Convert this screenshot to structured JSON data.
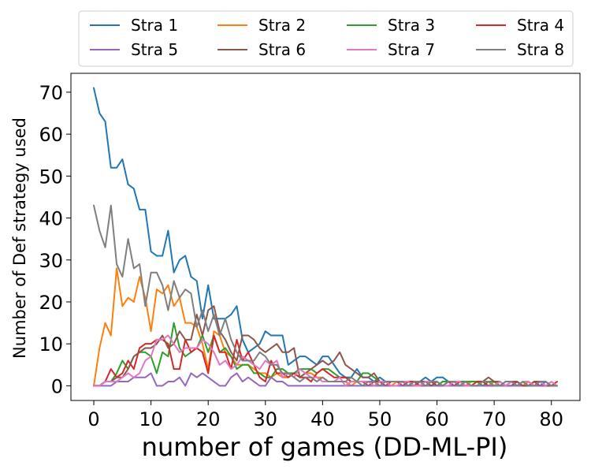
{
  "chart_data": {
    "type": "line",
    "xlabel": "number of games (DD-ML-PI)",
    "ylabel": "Number of Def strategy used",
    "xlim": [
      -4,
      85
    ],
    "ylim": [
      -3.5,
      74.5
    ],
    "xticks": [
      0,
      10,
      20,
      30,
      40,
      50,
      60,
      70,
      80
    ],
    "yticks": [
      0,
      10,
      20,
      30,
      40,
      50,
      60,
      70
    ],
    "legend": {
      "placement": "top-outside",
      "columns": 4
    },
    "grid": false,
    "series": [
      {
        "name": "Stra 1",
        "color": "#1f77b4",
        "values": [
          71,
          65,
          63,
          52,
          52,
          54,
          48,
          47,
          42,
          42,
          32,
          31,
          31,
          37,
          27,
          30,
          31,
          26,
          25,
          16,
          24,
          16,
          16,
          16,
          17,
          19,
          11,
          8,
          9,
          10,
          13,
          12,
          12,
          12,
          5,
          6,
          7,
          7,
          6,
          5,
          7,
          7,
          5,
          3,
          2,
          2,
          4,
          2,
          2,
          1,
          2,
          1,
          1,
          1,
          1,
          0,
          1,
          1,
          2,
          1,
          2,
          2,
          1,
          1,
          0,
          1,
          1,
          1,
          0,
          0,
          1,
          1,
          0,
          0,
          1,
          0,
          1,
          0,
          0,
          1,
          0,
          0
        ]
      },
      {
        "name": "Stra 2",
        "color": "#ff7f0e",
        "values": [
          0,
          9,
          15,
          12,
          28,
          19,
          21,
          20,
          26,
          21,
          13,
          23,
          22,
          24,
          19,
          21,
          15,
          15,
          14,
          10,
          4,
          13,
          12,
          8,
          7,
          5,
          5,
          5,
          4,
          3,
          3,
          2,
          3,
          2,
          2,
          3,
          4,
          3,
          3,
          2,
          2,
          1,
          1,
          1,
          1,
          0,
          1,
          1,
          1,
          1,
          1,
          0,
          0,
          1,
          1,
          1,
          0,
          0,
          1,
          1,
          0,
          1,
          1,
          0,
          1,
          0,
          1,
          1,
          0,
          0,
          1,
          0,
          0,
          1,
          0,
          0,
          1,
          0,
          0,
          0,
          0,
          0
        ]
      },
      {
        "name": "Stra 3",
        "color": "#2ca02c",
        "values": [
          0,
          0,
          1,
          1,
          3,
          6,
          4,
          7,
          8,
          8,
          7,
          3,
          8,
          7,
          15,
          9,
          7,
          8,
          9,
          12,
          8,
          12,
          8,
          9,
          7,
          4,
          5,
          5,
          3,
          3,
          2,
          2,
          4,
          4,
          3,
          3,
          4,
          4,
          4,
          3,
          4,
          4,
          3,
          2,
          2,
          1,
          1,
          3,
          3,
          2,
          1,
          1,
          1,
          1,
          1,
          1,
          0,
          1,
          1,
          1,
          0,
          1,
          1,
          1,
          1,
          1,
          1,
          1,
          0,
          1,
          1,
          0,
          1,
          1,
          0,
          1,
          0,
          0,
          1,
          0,
          0,
          0
        ]
      },
      {
        "name": "Stra 4",
        "color": "#d62728",
        "values": [
          0,
          0,
          1,
          4,
          2,
          3,
          6,
          4,
          9,
          10,
          10,
          11,
          11,
          10,
          4,
          4,
          11,
          8,
          9,
          8,
          3,
          12,
          8,
          8,
          4,
          11,
          6,
          8,
          5,
          2,
          1,
          6,
          3,
          3,
          2,
          3,
          2,
          2,
          1,
          3,
          4,
          3,
          2,
          2,
          2,
          1,
          1,
          1,
          0,
          1,
          1,
          0,
          1,
          1,
          0,
          1,
          1,
          0,
          0,
          1,
          0,
          0,
          1,
          0,
          1,
          0,
          0,
          1,
          1,
          0,
          0,
          1,
          0,
          0,
          1,
          0,
          0,
          1,
          0,
          0,
          0,
          1
        ]
      },
      {
        "name": "Stra 5",
        "color": "#9467bd",
        "values": [
          0,
          0,
          0,
          0,
          1,
          1,
          1,
          2,
          2,
          2,
          3,
          0,
          0,
          1,
          1,
          2,
          0,
          3,
          2,
          3,
          2,
          1,
          0,
          0,
          2,
          3,
          1,
          2,
          1,
          0,
          0,
          2,
          1,
          1,
          0,
          0,
          0,
          0,
          0,
          0,
          0,
          0,
          0,
          0,
          0,
          0,
          0,
          0,
          0,
          0,
          0,
          0,
          0,
          0,
          0,
          0,
          0,
          0,
          0,
          0,
          0,
          0,
          0,
          0,
          0,
          0,
          0,
          0,
          0,
          0,
          0,
          0,
          0,
          0,
          0,
          0,
          0,
          0,
          0,
          0,
          0,
          0
        ]
      },
      {
        "name": "Stra 6",
        "color": "#8c564b",
        "values": [
          0,
          0,
          1,
          1,
          2,
          2,
          4,
          7,
          8,
          9,
          9,
          10,
          12,
          9,
          10,
          13,
          11,
          11,
          17,
          12,
          18,
          19,
          13,
          11,
          8,
          6,
          12,
          12,
          11,
          9,
          8,
          9,
          10,
          8,
          8,
          9,
          2,
          3,
          4,
          5,
          6,
          5,
          6,
          8,
          5,
          4,
          3,
          2,
          2,
          3,
          1,
          1,
          1,
          1,
          1,
          1,
          0,
          1,
          1,
          0,
          1,
          0,
          1,
          1,
          0,
          1,
          0,
          0,
          1,
          2,
          1,
          1,
          0,
          1,
          1,
          0,
          0,
          1,
          1,
          0,
          0,
          0
        ]
      },
      {
        "name": "Stra 7",
        "color": "#e377c2",
        "values": [
          0,
          0,
          1,
          1,
          1,
          2,
          3,
          2,
          3,
          6,
          7,
          11,
          11,
          12,
          10,
          8,
          9,
          9,
          9,
          11,
          10,
          8,
          5,
          6,
          4,
          5,
          7,
          6,
          5,
          4,
          6,
          5,
          6,
          2,
          3,
          2,
          4,
          3,
          2,
          2,
          1,
          1,
          1,
          2,
          0,
          1,
          1,
          1,
          1,
          0,
          1,
          1,
          0,
          0,
          1,
          1,
          0,
          0,
          1,
          1,
          1,
          0,
          0,
          1,
          1,
          0,
          0,
          0,
          1,
          1,
          0,
          1,
          0,
          1,
          0,
          1,
          1,
          0,
          1,
          0,
          1,
          0
        ]
      },
      {
        "name": "Stra 8",
        "color": "#7f7f7f",
        "values": [
          43,
          37,
          33,
          43,
          29,
          26,
          35,
          28,
          29,
          19,
          27,
          27,
          24,
          18,
          25,
          21,
          23,
          22,
          14,
          18,
          13,
          17,
          12,
          16,
          11,
          8,
          6,
          6,
          6,
          8,
          7,
          5,
          5,
          3,
          3,
          2,
          1,
          2,
          2,
          1,
          2,
          1,
          1,
          1,
          1,
          2,
          1,
          0,
          1,
          1,
          0,
          1,
          1,
          1,
          1,
          0,
          1,
          1,
          0,
          1,
          1,
          0,
          1,
          1,
          0,
          1,
          0,
          0,
          1,
          1,
          0,
          0,
          1,
          1,
          0,
          1,
          0,
          0,
          1,
          1,
          0,
          0
        ]
      }
    ]
  }
}
